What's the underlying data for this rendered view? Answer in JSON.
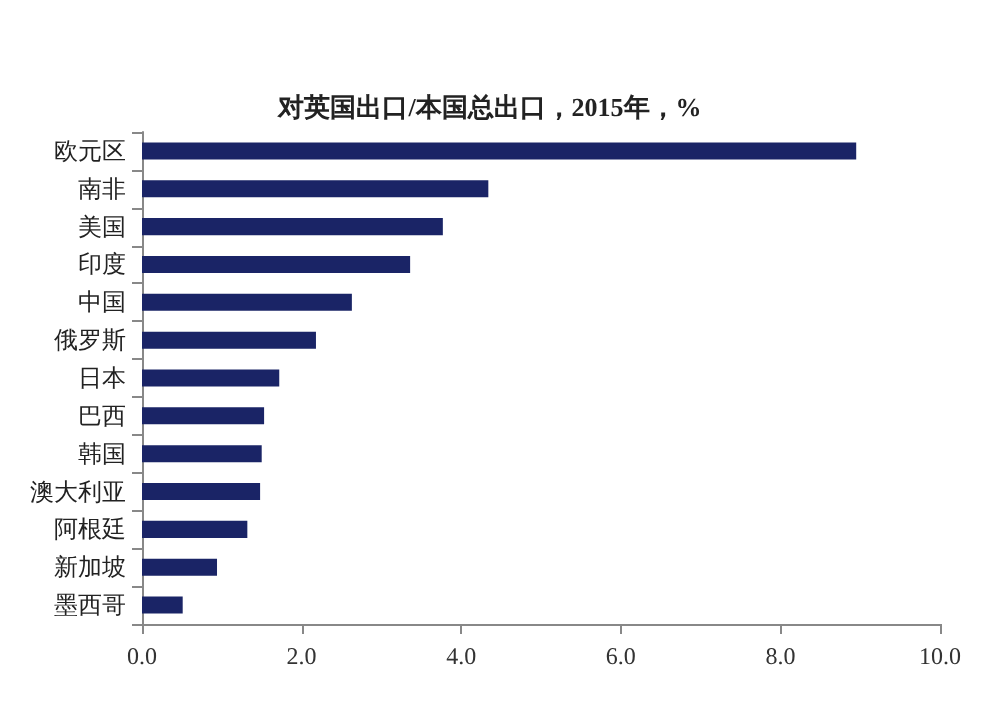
{
  "chart_data": {
    "type": "bar",
    "orientation": "horizontal",
    "title": "对英国出口/本国总出口，2015年，%",
    "categories": [
      "欧元区",
      "南非",
      "美国",
      "印度",
      "中国",
      "俄罗斯",
      "日本",
      "巴西",
      "韩国",
      "澳大利亚",
      "阿根廷",
      "新加坡",
      "墨西哥"
    ],
    "values": [
      8.95,
      4.34,
      3.77,
      3.36,
      2.63,
      2.18,
      1.72,
      1.53,
      1.5,
      1.48,
      1.32,
      0.94,
      0.51
    ],
    "color": "#1a2466",
    "xlim": [
      0,
      10
    ],
    "xticks": [
      {
        "value": 0,
        "label": "0.0"
      },
      {
        "value": 2,
        "label": "2.0"
      },
      {
        "value": 4,
        "label": "4.0"
      },
      {
        "value": 6,
        "label": "6.0"
      },
      {
        "value": 8,
        "label": "8.0"
      },
      {
        "value": 10,
        "label": "10.0"
      }
    ],
    "grid": false
  }
}
